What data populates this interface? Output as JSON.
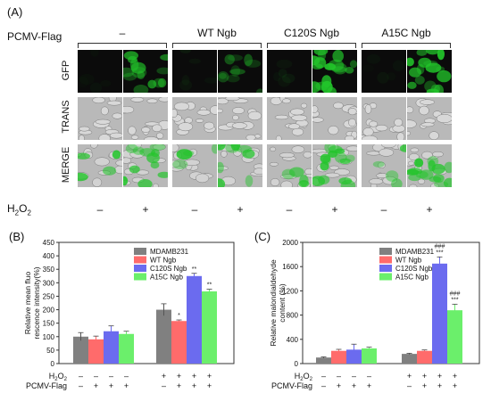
{
  "panel_a": {
    "label": "(A)",
    "vector_label": "PCMV-Flag",
    "groups": [
      "–",
      "WT Ngb",
      "C120S Ngb",
      "A15C Ngb"
    ],
    "rows": [
      "GFP",
      "TRANS",
      "MERGE"
    ],
    "h2o2_label": "H2O2",
    "h2o2_signs": [
      "–",
      "+",
      "–",
      "+",
      "–",
      "+",
      "–",
      "+"
    ],
    "gfp_levels": [
      0.05,
      0.7,
      0.08,
      0.45,
      0.08,
      0.95,
      0.06,
      0.95
    ],
    "colors": {
      "gfp": "#22c52a",
      "trans": "#b9b9b9",
      "dark": "#0b0b0b"
    }
  },
  "panel_b": {
    "label": "(B)"
  },
  "panel_c": {
    "label": "(C)"
  },
  "chart_data": [
    {
      "type": "bar",
      "title": "",
      "ylabel": "Relative mean fluorescence intensity(%)",
      "ylim": [
        0,
        450
      ],
      "yticks": [
        "0",
        "50",
        "100",
        "150",
        "200",
        "250",
        "300",
        "350",
        "400",
        "450"
      ],
      "series": [
        {
          "name": "MDAMB231",
          "color": "#808080",
          "values": [
            100,
            200
          ],
          "errors": [
            15,
            22
          ]
        },
        {
          "name": "WT Ngb",
          "color": "#ff6b6b",
          "values": [
            90,
            158
          ],
          "errors": [
            12,
            4
          ]
        },
        {
          "name": "C120S Ngb",
          "color": "#6b6bef",
          "values": [
            120,
            325
          ],
          "errors": [
            20,
            10
          ]
        },
        {
          "name": "A15C Ngb",
          "color": "#6bef6b",
          "values": [
            110,
            268
          ],
          "errors": [
            10,
            8
          ]
        }
      ],
      "annotations": [
        {
          "group": 1,
          "series": 1,
          "text": "*"
        },
        {
          "group": 1,
          "series": 2,
          "text": "**"
        },
        {
          "group": 1,
          "series": 3,
          "text": "**"
        }
      ],
      "factor_rows": [
        {
          "label": "H2O2",
          "signs": [
            "–",
            "–",
            "–",
            "–",
            "+",
            "+",
            "+",
            "+"
          ]
        },
        {
          "label": "PCMV-Flag",
          "signs": [
            "–",
            "+",
            "+",
            "+",
            "–",
            "+",
            "+",
            "+"
          ]
        }
      ]
    },
    {
      "type": "bar",
      "title": "",
      "ylabel": "Relative malondialdehyde content (%)",
      "ylim": [
        0,
        2000
      ],
      "yticks": [
        "0",
        "400",
        "800",
        "1200",
        "1600",
        "2000"
      ],
      "series": [
        {
          "name": "MDAMB231",
          "color": "#808080",
          "values": [
            100,
            160
          ],
          "errors": [
            10,
            10
          ]
        },
        {
          "name": "WT Ngb",
          "color": "#ff6b6b",
          "values": [
            210,
            210
          ],
          "errors": [
            25,
            15
          ]
        },
        {
          "name": "C120S Ngb",
          "color": "#6b6bef",
          "values": [
            230,
            1650
          ],
          "errors": [
            90,
            110
          ]
        },
        {
          "name": "A15C Ngb",
          "color": "#6bef6b",
          "values": [
            250,
            880
          ],
          "errors": [
            20,
            100
          ]
        }
      ],
      "annotations": [
        {
          "group": 1,
          "series": 2,
          "text": "###"
        },
        {
          "group": 1,
          "series": 2,
          "text": "***"
        },
        {
          "group": 1,
          "series": 3,
          "text": "###"
        },
        {
          "group": 1,
          "series": 3,
          "text": "***"
        }
      ],
      "factor_rows": [
        {
          "label": "H2O2",
          "signs": [
            "–",
            "–",
            "–",
            "–",
            "+",
            "+",
            "+",
            "+"
          ]
        },
        {
          "label": "PCMV-Flag",
          "signs": [
            "–",
            "+",
            "+",
            "+",
            "–",
            "+",
            "+",
            "+"
          ]
        }
      ]
    }
  ]
}
